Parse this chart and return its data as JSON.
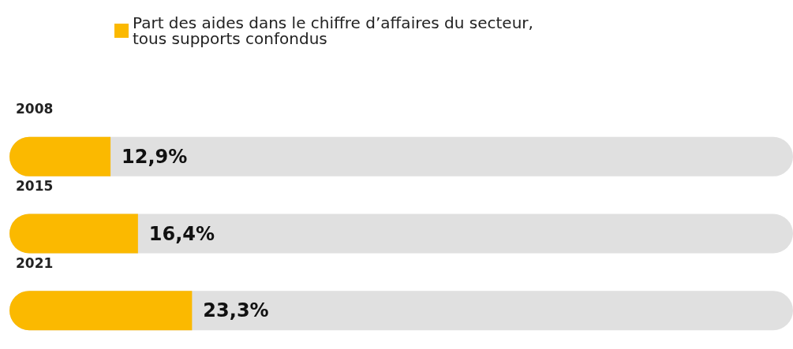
{
  "chart_data": {
    "type": "bar",
    "orientation": "horizontal",
    "categories": [
      "2008",
      "2015",
      "2021"
    ],
    "xlim": [
      0,
      100
    ],
    "series": [
      {
        "name": "Part des aides dans le chiffre d’affaires du secteur, tous supports confondus",
        "color": "#fbb900",
        "values": [
          12.9,
          16.4,
          23.3
        ],
        "value_labels": [
          "12,9%",
          "16,4%",
          "23,3%"
        ]
      }
    ],
    "legend": "top",
    "grid": false,
    "tick_labels": "y"
  }
}
